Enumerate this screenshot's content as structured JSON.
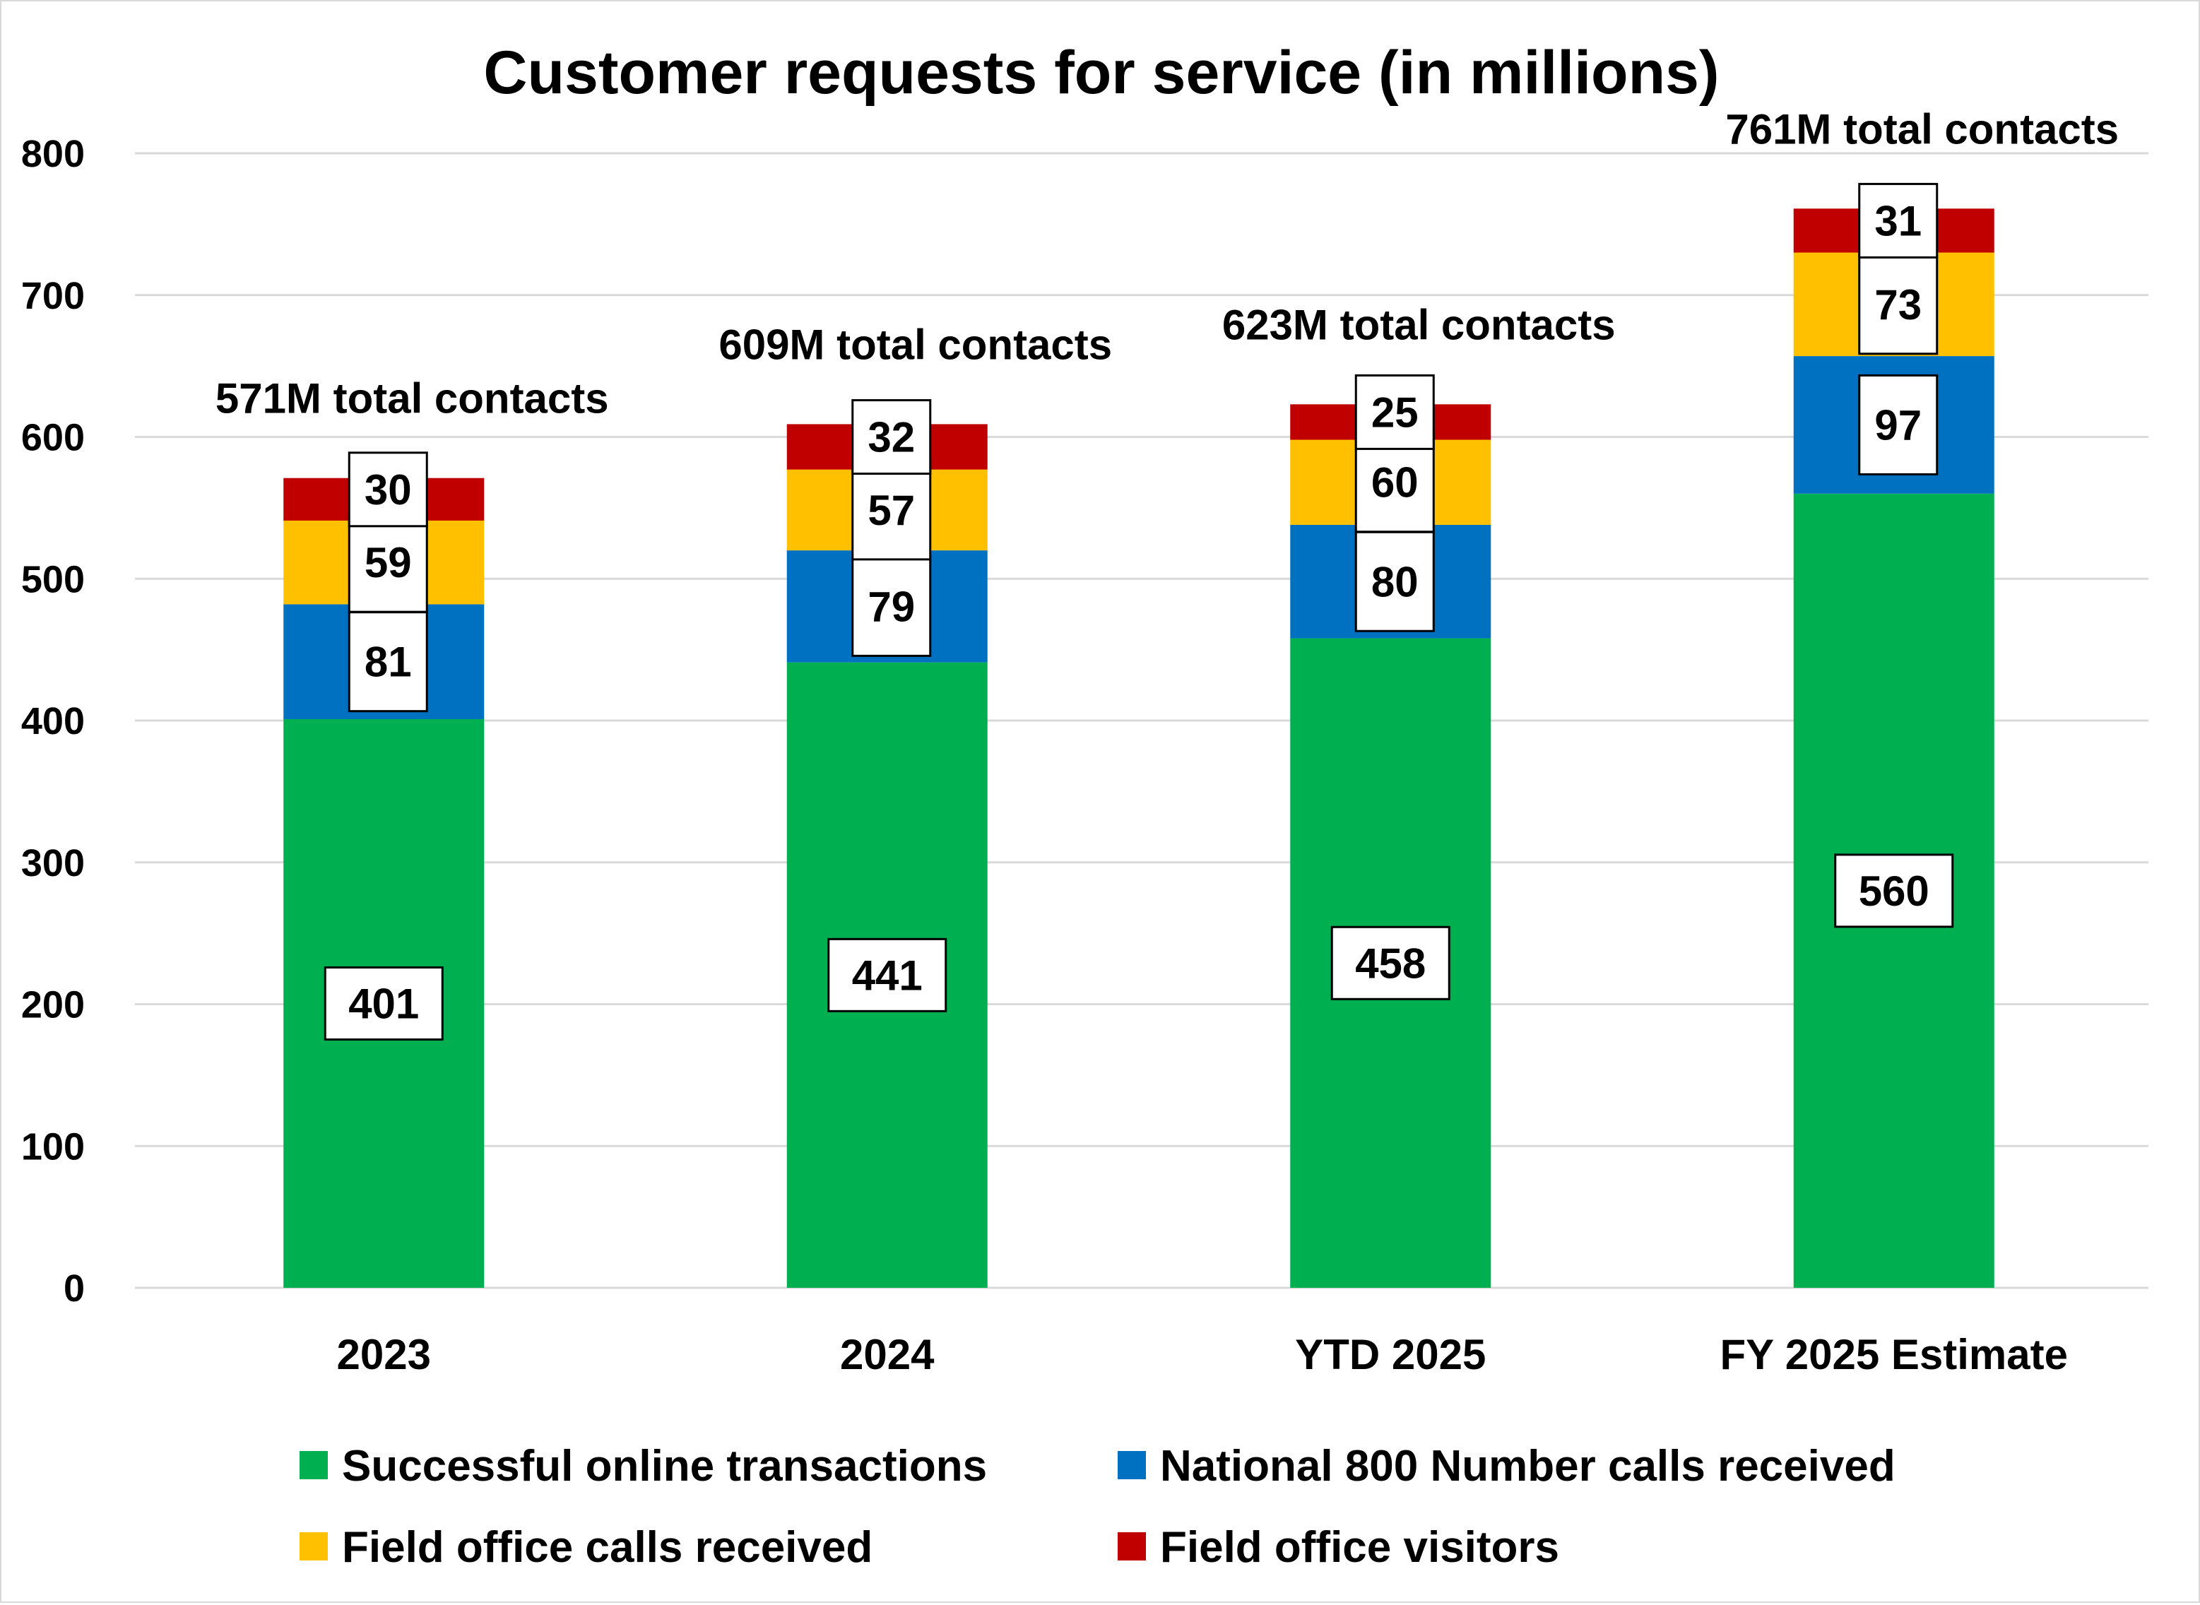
{
  "chart_data": {
    "type": "bar",
    "stacked": true,
    "title": "Customer requests for service (in millions)",
    "xlabel": "",
    "ylabel": "",
    "ylim": [
      0,
      800
    ],
    "yticks": [
      0,
      100,
      200,
      300,
      400,
      500,
      600,
      700,
      800
    ],
    "grid": true,
    "legend_position": "bottom",
    "categories": [
      "2023",
      "2024",
      "YTD 2025",
      "FY 2025 Estimate"
    ],
    "series": [
      {
        "name": "Successful online transactions",
        "color": "#00B050",
        "values": [
          401,
          441,
          458,
          560
        ]
      },
      {
        "name": "National 800 Number calls received",
        "color": "#0070C0",
        "values": [
          81,
          79,
          80,
          97
        ]
      },
      {
        "name": "Field office calls received",
        "color": "#FFC000",
        "values": [
          59,
          57,
          60,
          73
        ]
      },
      {
        "name": "Field office visitors",
        "color": "#C00000",
        "values": [
          30,
          32,
          25,
          31
        ]
      }
    ],
    "totals": [
      571,
      609,
      623,
      761
    ],
    "total_labels": [
      "571M total contacts",
      "609M total contacts",
      "623M total contacts",
      "761M total contacts"
    ],
    "legend_order": [
      0,
      1,
      2,
      3
    ]
  }
}
